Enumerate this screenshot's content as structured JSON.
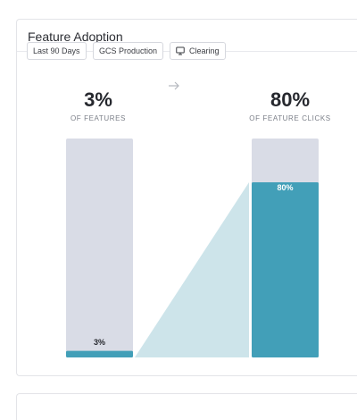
{
  "card": {
    "title": "Feature Adoption"
  },
  "filters": [
    {
      "label": "Last 90 Days",
      "icon": ""
    },
    {
      "label": "GCS Production",
      "icon": ""
    },
    {
      "label": "Clearing",
      "icon": "monitor-icon"
    }
  ],
  "left_stat": {
    "value": "3%",
    "caption": "OF FEATURES"
  },
  "right_stat": {
    "value": "80%",
    "caption": "OF FEATURE CLICKS"
  },
  "colors": {
    "bar_fill": "#429fb8",
    "bar_track": "#d9dce6",
    "connector": "#cde4ea",
    "bar_label_dark": "#26282e",
    "bar_label_light": "#ffffff"
  },
  "chart_data": {
    "type": "bar",
    "categories": [
      "Features",
      "Feature clicks"
    ],
    "values": [
      3,
      80
    ],
    "data_labels": [
      "3%",
      "80%"
    ],
    "ylim": [
      0,
      100
    ],
    "title": "",
    "xlabel": "",
    "ylabel": ""
  }
}
